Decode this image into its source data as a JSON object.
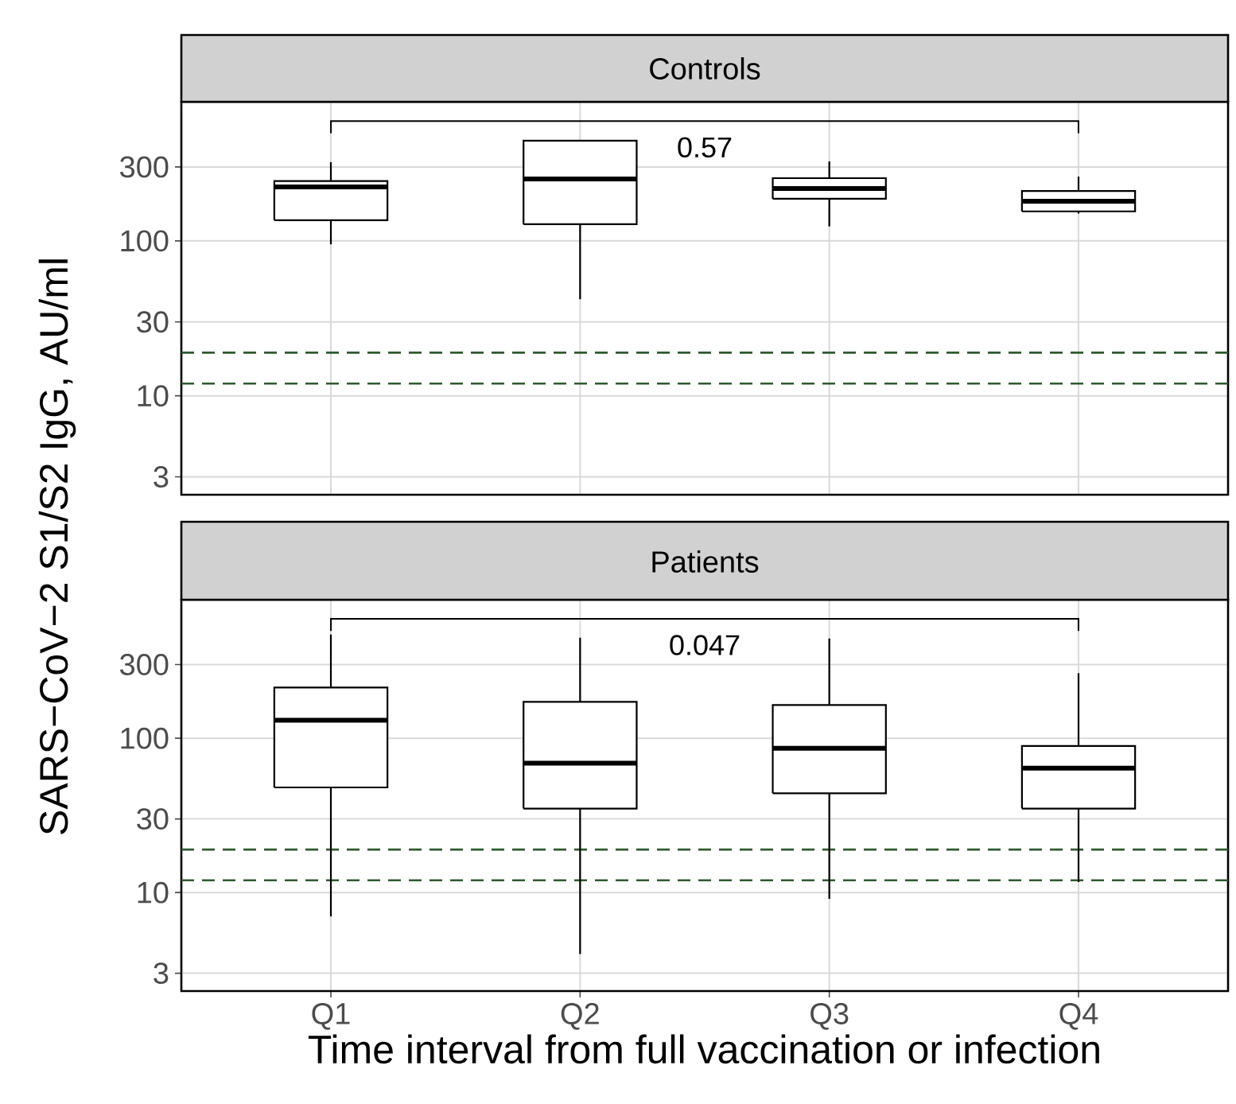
{
  "chart_data": [
    {
      "type": "box",
      "title": "Controls",
      "ylabel": "SARS−CoV−2 S1/S2 IgG, AU/ml",
      "categories": [
        null,
        null,
        null,
        null
      ],
      "boxes": [
        {
          "low": 95,
          "q1": 136,
          "median": 223,
          "q3": 243,
          "high": 322
        },
        {
          "low": 42,
          "q1": 128,
          "median": 251,
          "q3": 443,
          "high": 443
        },
        {
          "low": 124,
          "q1": 187,
          "median": 218,
          "q3": 254,
          "high": 326
        },
        {
          "low": 150,
          "q1": 155,
          "median": 180,
          "q3": 210,
          "high": 260
        }
      ],
      "log": "y",
      "ylim": [
        2.3,
        790
      ],
      "yticks": [
        3,
        10,
        30,
        100,
        300
      ],
      "grid": true,
      "tick_labels": "y",
      "ref_lines": [
        {
          "axis": "y",
          "value": 19,
          "color": "#2f5a2f",
          "line_style": "dashed"
        },
        {
          "axis": "y",
          "value": 12,
          "color": "#2f5a2f",
          "line_style": "dashed"
        }
      ],
      "annotations": [
        "0.57"
      ]
    },
    {
      "type": "box",
      "title": "Patients",
      "xlabel": "Time interval from full vaccination or infection",
      "categories": [
        "Q1",
        "Q2",
        "Q3",
        "Q4"
      ],
      "boxes": [
        {
          "low": 7,
          "q1": 48,
          "median": 131,
          "q3": 213,
          "high": 470
        },
        {
          "low": 4,
          "q1": 35,
          "median": 69,
          "q3": 172,
          "high": 448
        },
        {
          "low": 9.1,
          "q1": 44,
          "median": 86,
          "q3": 164,
          "high": 443
        },
        {
          "low": 11.7,
          "q1": 35,
          "median": 64,
          "q3": 89,
          "high": 264
        }
      ],
      "log": "y",
      "ylim": [
        2.3,
        790
      ],
      "yticks": [
        3,
        10,
        30,
        100,
        300
      ],
      "grid": true,
      "ref_lines": [
        {
          "axis": "y",
          "value": 19,
          "color": "#2f5a2f",
          "line_style": "dashed"
        },
        {
          "axis": "y",
          "value": 12,
          "color": "#2f5a2f",
          "line_style": "dashed"
        }
      ],
      "annotations": [
        "0.047"
      ]
    }
  ]
}
